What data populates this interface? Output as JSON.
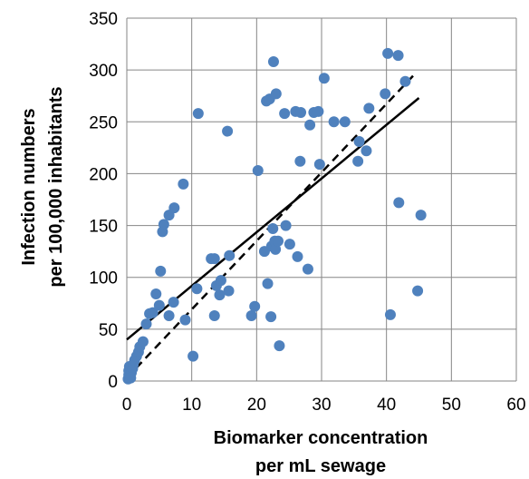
{
  "chart_data": {
    "type": "scatter",
    "title": "",
    "xlabel_lines": [
      "Biomarker concentration",
      "per mL sewage"
    ],
    "ylabel_lines": [
      "Infection numbers",
      "per 100,000 inhabitants"
    ],
    "xlim": [
      0,
      60
    ],
    "ylim": [
      0,
      350
    ],
    "xticks": [
      0,
      10,
      20,
      30,
      40,
      50,
      60
    ],
    "yticks": [
      0,
      50,
      100,
      150,
      200,
      250,
      300,
      350
    ],
    "grid": "vertical and horizontal major gridlines",
    "colors": {
      "points": "#4f81bd",
      "trendlines": "#000000",
      "grid": "#868686"
    },
    "points": [
      {
        "x": 0.2,
        "y": 2
      },
      {
        "x": 0.3,
        "y": 6
      },
      {
        "x": 0.3,
        "y": 10
      },
      {
        "x": 0.4,
        "y": 14
      },
      {
        "x": 0.7,
        "y": 8
      },
      {
        "x": 0.9,
        "y": 12
      },
      {
        "x": 0.6,
        "y": 3
      },
      {
        "x": 1.0,
        "y": 16
      },
      {
        "x": 1.2,
        "y": 20
      },
      {
        "x": 1.5,
        "y": 24
      },
      {
        "x": 1.8,
        "y": 28
      },
      {
        "x": 2.0,
        "y": 33
      },
      {
        "x": 2.5,
        "y": 38
      },
      {
        "x": 3.0,
        "y": 55
      },
      {
        "x": 3.5,
        "y": 65
      },
      {
        "x": 4.0,
        "y": 66
      },
      {
        "x": 4.5,
        "y": 84
      },
      {
        "x": 5.0,
        "y": 73
      },
      {
        "x": 5.2,
        "y": 106
      },
      {
        "x": 5.5,
        "y": 144
      },
      {
        "x": 5.7,
        "y": 151
      },
      {
        "x": 6.5,
        "y": 160
      },
      {
        "x": 7.3,
        "y": 167
      },
      {
        "x": 6.5,
        "y": 63
      },
      {
        "x": 7.2,
        "y": 76
      },
      {
        "x": 8.7,
        "y": 190
      },
      {
        "x": 9.0,
        "y": 59
      },
      {
        "x": 10.2,
        "y": 24
      },
      {
        "x": 10.8,
        "y": 89
      },
      {
        "x": 11.0,
        "y": 258
      },
      {
        "x": 13.0,
        "y": 118
      },
      {
        "x": 13.5,
        "y": 118
      },
      {
        "x": 13.5,
        "y": 63
      },
      {
        "x": 13.8,
        "y": 92
      },
      {
        "x": 14.3,
        "y": 83
      },
      {
        "x": 14.5,
        "y": 97
      },
      {
        "x": 15.5,
        "y": 241
      },
      {
        "x": 15.7,
        "y": 87
      },
      {
        "x": 15.8,
        "y": 121
      },
      {
        "x": 19.2,
        "y": 63
      },
      {
        "x": 19.7,
        "y": 72
      },
      {
        "x": 20.2,
        "y": 203
      },
      {
        "x": 21.2,
        "y": 125
      },
      {
        "x": 21.5,
        "y": 270
      },
      {
        "x": 21.7,
        "y": 94
      },
      {
        "x": 22.0,
        "y": 272
      },
      {
        "x": 22.2,
        "y": 62
      },
      {
        "x": 22.3,
        "y": 130
      },
      {
        "x": 22.5,
        "y": 147
      },
      {
        "x": 22.6,
        "y": 308
      },
      {
        "x": 22.8,
        "y": 135
      },
      {
        "x": 22.9,
        "y": 127
      },
      {
        "x": 23.0,
        "y": 277
      },
      {
        "x": 23.3,
        "y": 135
      },
      {
        "x": 23.5,
        "y": 34
      },
      {
        "x": 24.3,
        "y": 258
      },
      {
        "x": 24.5,
        "y": 150
      },
      {
        "x": 25.1,
        "y": 132
      },
      {
        "x": 26.0,
        "y": 260
      },
      {
        "x": 26.3,
        "y": 120
      },
      {
        "x": 26.7,
        "y": 212
      },
      {
        "x": 26.8,
        "y": 259
      },
      {
        "x": 27.9,
        "y": 108
      },
      {
        "x": 28.2,
        "y": 247
      },
      {
        "x": 28.8,
        "y": 259
      },
      {
        "x": 29.5,
        "y": 260
      },
      {
        "x": 29.7,
        "y": 209
      },
      {
        "x": 30.4,
        "y": 292
      },
      {
        "x": 31.9,
        "y": 250
      },
      {
        "x": 33.6,
        "y": 250
      },
      {
        "x": 35.6,
        "y": 212
      },
      {
        "x": 35.8,
        "y": 231
      },
      {
        "x": 36.9,
        "y": 222
      },
      {
        "x": 37.3,
        "y": 263
      },
      {
        "x": 39.8,
        "y": 277
      },
      {
        "x": 40.2,
        "y": 316
      },
      {
        "x": 40.6,
        "y": 64
      },
      {
        "x": 41.8,
        "y": 314
      },
      {
        "x": 41.9,
        "y": 172
      },
      {
        "x": 42.9,
        "y": 289
      },
      {
        "x": 44.8,
        "y": 87
      },
      {
        "x": 45.3,
        "y": 160
      }
    ],
    "trendlines": [
      {
        "style": "solid",
        "x": [
          0,
          45
        ],
        "y": [
          40,
          273
        ]
      },
      {
        "style": "dashed",
        "x": [
          0,
          44.5
        ],
        "y": [
          3,
          297
        ]
      }
    ]
  }
}
